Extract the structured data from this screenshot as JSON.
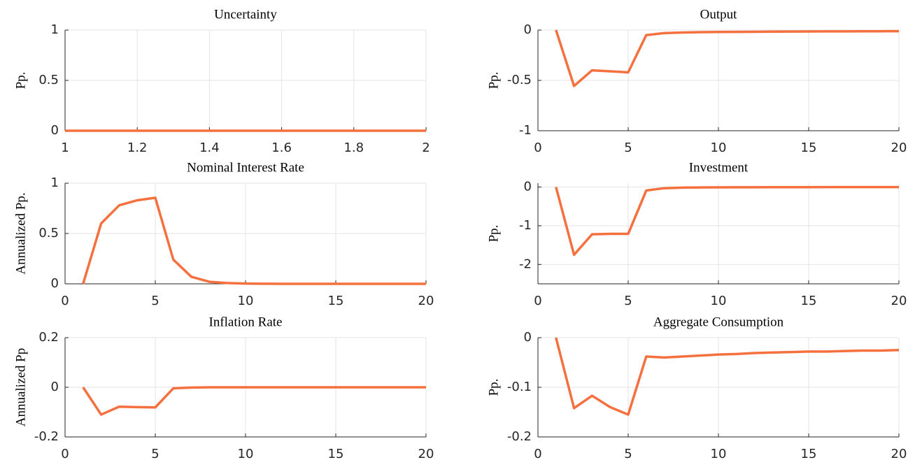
{
  "chart_data": [
    {
      "type": "line",
      "title": "Uncertainty",
      "ylabel": "Pp.",
      "color": "#f4703f",
      "grid": true,
      "x": [
        1,
        2
      ],
      "values": [
        0,
        0
      ],
      "xlim": [
        1,
        2
      ],
      "xticks": [
        1,
        1.2,
        1.4,
        1.6,
        1.8,
        2
      ],
      "ylim": [
        0,
        1
      ],
      "yticks": [
        0,
        0.5,
        1
      ]
    },
    {
      "type": "line",
      "title": "Output",
      "ylabel": "Pp.",
      "color": "#f4703f",
      "grid": true,
      "x": [
        1,
        2,
        3,
        4,
        5,
        6,
        7,
        8,
        9,
        10,
        11,
        12,
        13,
        14,
        15,
        16,
        17,
        18,
        19,
        20
      ],
      "values": [
        0,
        -0.555,
        -0.4,
        -0.41,
        -0.42,
        -0.05,
        -0.03,
        -0.024,
        -0.021,
        -0.019,
        -0.018,
        -0.017,
        -0.016,
        -0.015,
        -0.014,
        -0.013,
        -0.013,
        -0.012,
        -0.012,
        -0.011
      ],
      "xlim": [
        0,
        20
      ],
      "xticks": [
        0,
        5,
        10,
        15,
        20
      ],
      "ylim": [
        -1,
        0
      ],
      "yticks": [
        -1,
        -0.5,
        0
      ]
    },
    {
      "type": "line",
      "title": "Nominal Interest Rate",
      "ylabel": "Annualized Pp.",
      "color": "#f4703f",
      "grid": true,
      "x": [
        1,
        2,
        3,
        4,
        5,
        6,
        7,
        8,
        9,
        10,
        11,
        12,
        13,
        14,
        15,
        16,
        17,
        18,
        19,
        20
      ],
      "values": [
        0,
        0.6,
        0.78,
        0.83,
        0.855,
        0.24,
        0.07,
        0.02,
        0.008,
        0.003,
        0.001,
        0,
        0,
        0,
        0,
        0,
        0,
        0,
        0,
        0
      ],
      "xlim": [
        0,
        20
      ],
      "xticks": [
        0,
        5,
        10,
        15,
        20
      ],
      "ylim": [
        0,
        1
      ],
      "yticks": [
        0,
        0.5,
        1
      ]
    },
    {
      "type": "line",
      "title": "Investment",
      "ylabel": "Pp.",
      "color": "#f4703f",
      "grid": true,
      "x": [
        1,
        2,
        3,
        4,
        5,
        6,
        7,
        8,
        9,
        10,
        11,
        12,
        13,
        14,
        15,
        16,
        17,
        18,
        19,
        20
      ],
      "values": [
        0,
        -1.75,
        -1.22,
        -1.21,
        -1.21,
        -0.09,
        -0.03,
        -0.015,
        -0.01,
        -0.008,
        -0.006,
        -0.005,
        -0.004,
        -0.003,
        -0.003,
        -0.002,
        -0.002,
        -0.001,
        -0.001,
        -0.001
      ],
      "xlim": [
        0,
        20
      ],
      "xticks": [
        0,
        5,
        10,
        15,
        20
      ],
      "ylim": [
        -2.5,
        0.1
      ],
      "yticks": [
        -2,
        -1,
        0
      ]
    },
    {
      "type": "line",
      "title": "Inflation Rate",
      "ylabel": "Annualized Pp",
      "color": "#f4703f",
      "grid": true,
      "x": [
        1,
        2,
        3,
        4,
        5,
        6,
        7,
        8,
        9,
        10,
        11,
        12,
        13,
        14,
        15,
        16,
        17,
        18,
        19,
        20
      ],
      "values": [
        0,
        -0.11,
        -0.078,
        -0.08,
        -0.081,
        -0.004,
        -0.001,
        0,
        0,
        0,
        0,
        0,
        0,
        0,
        0,
        0,
        0,
        0,
        0,
        0
      ],
      "xlim": [
        0,
        20
      ],
      "xticks": [
        0,
        5,
        10,
        15,
        20
      ],
      "ylim": [
        -0.2,
        0.2
      ],
      "yticks": [
        -0.2,
        0,
        0.2
      ]
    },
    {
      "type": "line",
      "title": "Aggregate Consumption",
      "ylabel": "Pp.",
      "color": "#f4703f",
      "grid": true,
      "x": [
        1,
        2,
        3,
        4,
        5,
        6,
        7,
        8,
        9,
        10,
        11,
        12,
        13,
        14,
        15,
        16,
        17,
        18,
        19,
        20
      ],
      "values": [
        0,
        -0.142,
        -0.117,
        -0.14,
        -0.155,
        -0.038,
        -0.04,
        -0.038,
        -0.036,
        -0.034,
        -0.033,
        -0.031,
        -0.03,
        -0.029,
        -0.028,
        -0.028,
        -0.027,
        -0.026,
        -0.026,
        -0.025
      ],
      "xlim": [
        0,
        20
      ],
      "xticks": [
        0,
        5,
        10,
        15,
        20
      ],
      "ylim": [
        -0.2,
        0
      ],
      "yticks": [
        -0.2,
        -0.1,
        0
      ]
    }
  ]
}
